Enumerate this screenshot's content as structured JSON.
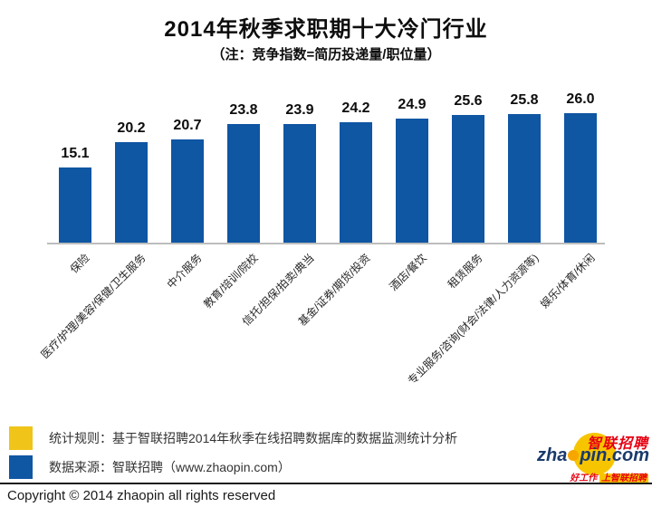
{
  "header": {
    "title": "2014年秋季求职期十大冷门行业",
    "subtitle": "（注：竞争指数=简历投递量/职位量）"
  },
  "chart_data": {
    "type": "bar",
    "title": "2014年秋季求职期十大冷门行业",
    "note": "竞争指数=简历投递量/职位量",
    "categories": [
      "保险",
      "医疗/护理/美容/保健/卫生服务",
      "中介服务",
      "教育/培训/院校",
      "信托/担保/拍卖/典当",
      "基金/证券/期货/投资",
      "酒店/餐饮",
      "租赁服务",
      "专业服务/咨询(财会/法律/人力资源等)",
      "娱乐/体育/休闲"
    ],
    "values": [
      15.1,
      20.2,
      20.7,
      23.8,
      23.9,
      24.2,
      24.9,
      25.6,
      25.8,
      26.0
    ],
    "value_label_decimals": 1,
    "bar_color": "#0f56a3",
    "xlabel": "",
    "ylabel": "",
    "ylim": [
      0,
      28
    ],
    "grid": false,
    "legend_position": "none"
  },
  "legend": {
    "rule_swatch_color": "#f0c419",
    "rule_text": "统计规则：基于智联招聘2014年秋季在线招聘数据库的数据监测统计分析",
    "source_swatch_color": "#0f56a3",
    "source_text": "数据来源：智联招聘（www.zhaopin.com）"
  },
  "logo": {
    "cn_name": "智联招聘",
    "brand_prefix": "zha",
    "brand_suffix": "pin.com",
    "tagline_left": "好工作",
    "tagline_right": "上智联招聘",
    "brand_color": "#1a3a6b",
    "accent_red": "#e60012",
    "accent_yellow": "#f7c500"
  },
  "footer": {
    "copyright": "Copyright © 2014 zhaopin all rights reserved"
  }
}
